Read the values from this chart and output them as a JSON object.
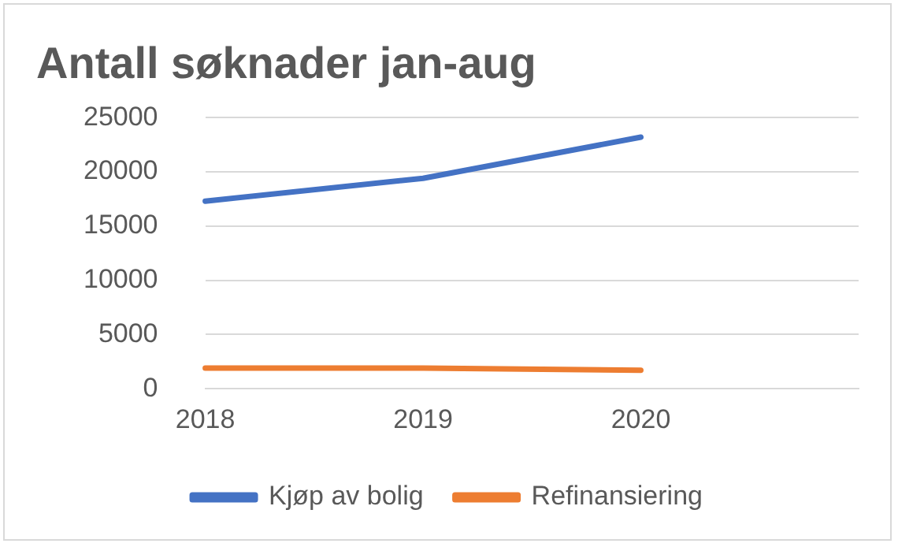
{
  "chart_data": {
    "type": "line",
    "title": "Antall søknader jan-aug",
    "categories": [
      "2018",
      "2019",
      "2020",
      null
    ],
    "series": [
      {
        "name": "Kjøp av bolig",
        "color": "#4472c4",
        "values": [
          17300,
          19400,
          23200,
          null
        ]
      },
      {
        "name": "Refinansiering",
        "color": "#ed7d31",
        "values": [
          1900,
          1900,
          1700,
          null
        ]
      }
    ],
    "ylim": [
      0,
      25000
    ],
    "yticks": [
      0,
      5000,
      10000,
      15000,
      20000,
      25000
    ],
    "grid": "y",
    "legend": "bottom",
    "marker": "none",
    "line_style": "solid"
  }
}
